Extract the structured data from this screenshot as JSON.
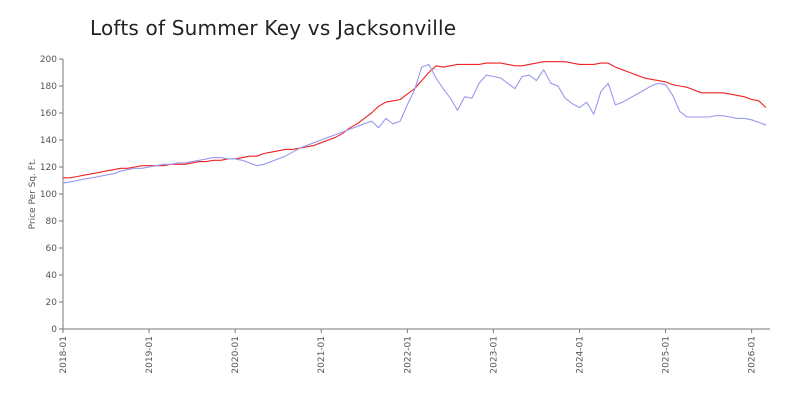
{
  "chart_data": {
    "type": "line",
    "title": "Lofts of Summer Key vs Jacksonville",
    "xlabel": "",
    "ylabel": "Price Per Sq. Ft.",
    "ylim": [
      0,
      200
    ],
    "xlim": [
      "2018-01",
      "2026-03"
    ],
    "grid": false,
    "legend": "none",
    "y_ticks": [
      0,
      20,
      40,
      60,
      80,
      100,
      120,
      140,
      160,
      180,
      200
    ],
    "x_ticks": [
      "2018-01",
      "2019-01",
      "2020-01",
      "2021-01",
      "2022-01",
      "2023-01",
      "2024-01",
      "2025-01",
      "2026-01"
    ],
    "series": [
      {
        "color": "#ee2222",
        "points": [
          [
            "2018-01",
            112
          ],
          [
            "2018-02",
            112
          ],
          [
            "2018-03",
            113
          ],
          [
            "2018-04",
            114
          ],
          [
            "2018-05",
            115
          ],
          [
            "2018-06",
            116
          ],
          [
            "2018-07",
            117
          ],
          [
            "2018-08",
            118
          ],
          [
            "2018-09",
            119
          ],
          [
            "2018-10",
            119
          ],
          [
            "2018-11",
            120
          ],
          [
            "2018-12",
            121
          ],
          [
            "2019-01",
            121
          ],
          [
            "2019-02",
            121
          ],
          [
            "2019-03",
            121
          ],
          [
            "2019-04",
            122
          ],
          [
            "2019-05",
            122
          ],
          [
            "2019-06",
            122
          ],
          [
            "2019-07",
            123
          ],
          [
            "2019-08",
            124
          ],
          [
            "2019-09",
            124
          ],
          [
            "2019-10",
            125
          ],
          [
            "2019-11",
            125
          ],
          [
            "2019-12",
            126
          ],
          [
            "2020-01",
            126
          ],
          [
            "2020-02",
            127
          ],
          [
            "2020-03",
            128
          ],
          [
            "2020-04",
            128
          ],
          [
            "2020-05",
            130
          ],
          [
            "2020-06",
            131
          ],
          [
            "2020-07",
            132
          ],
          [
            "2020-08",
            133
          ],
          [
            "2020-09",
            133
          ],
          [
            "2020-10",
            134
          ],
          [
            "2020-11",
            135
          ],
          [
            "2020-12",
            136
          ],
          [
            "2021-01",
            138
          ],
          [
            "2021-02",
            140
          ],
          [
            "2021-03",
            142
          ],
          [
            "2021-04",
            145
          ],
          [
            "2021-05",
            149
          ],
          [
            "2021-06",
            152
          ],
          [
            "2021-07",
            156
          ],
          [
            "2021-08",
            160
          ],
          [
            "2021-09",
            165
          ],
          [
            "2021-10",
            168
          ],
          [
            "2021-11",
            169
          ],
          [
            "2021-12",
            170
          ],
          [
            "2022-01",
            174
          ],
          [
            "2022-02",
            178
          ],
          [
            "2022-03",
            184
          ],
          [
            "2022-04",
            190
          ],
          [
            "2022-05",
            195
          ],
          [
            "2022-06",
            194
          ],
          [
            "2022-07",
            195
          ],
          [
            "2022-08",
            196
          ],
          [
            "2022-09",
            196
          ],
          [
            "2022-10",
            196
          ],
          [
            "2022-11",
            196
          ],
          [
            "2022-12",
            197
          ],
          [
            "2023-01",
            197
          ],
          [
            "2023-02",
            197
          ],
          [
            "2023-03",
            196
          ],
          [
            "2023-04",
            195
          ],
          [
            "2023-05",
            195
          ],
          [
            "2023-06",
            196
          ],
          [
            "2023-07",
            197
          ],
          [
            "2023-08",
            198
          ],
          [
            "2023-09",
            198
          ],
          [
            "2023-10",
            198
          ],
          [
            "2023-11",
            198
          ],
          [
            "2023-12",
            197
          ],
          [
            "2024-01",
            196
          ],
          [
            "2024-02",
            196
          ],
          [
            "2024-03",
            196
          ],
          [
            "2024-04",
            197
          ],
          [
            "2024-05",
            197
          ],
          [
            "2024-06",
            194
          ],
          [
            "2024-07",
            192
          ],
          [
            "2024-08",
            190
          ],
          [
            "2024-09",
            188
          ],
          [
            "2024-10",
            186
          ],
          [
            "2024-11",
            185
          ],
          [
            "2024-12",
            184
          ],
          [
            "2025-01",
            183
          ],
          [
            "2025-02",
            181
          ],
          [
            "2025-03",
            180
          ],
          [
            "2025-04",
            179
          ],
          [
            "2025-05",
            177
          ],
          [
            "2025-06",
            175
          ],
          [
            "2025-07",
            175
          ],
          [
            "2025-08",
            175
          ],
          [
            "2025-09",
            175
          ],
          [
            "2025-10",
            174
          ],
          [
            "2025-11",
            173
          ],
          [
            "2025-12",
            172
          ],
          [
            "2026-01",
            170
          ],
          [
            "2026-02",
            169
          ],
          [
            "2026-03",
            164
          ]
        ]
      },
      {
        "color": "#9999ee",
        "points": [
          [
            "2018-01",
            108
          ],
          [
            "2018-02",
            109
          ],
          [
            "2018-03",
            110
          ],
          [
            "2018-04",
            111
          ],
          [
            "2018-05",
            112
          ],
          [
            "2018-06",
            113
          ],
          [
            "2018-07",
            114
          ],
          [
            "2018-08",
            115
          ],
          [
            "2018-09",
            117
          ],
          [
            "2018-10",
            118
          ],
          [
            "2018-11",
            119
          ],
          [
            "2018-12",
            119
          ],
          [
            "2019-01",
            120
          ],
          [
            "2019-02",
            121
          ],
          [
            "2019-03",
            122
          ],
          [
            "2019-04",
            122
          ],
          [
            "2019-05",
            123
          ],
          [
            "2019-06",
            123
          ],
          [
            "2019-07",
            124
          ],
          [
            "2019-08",
            125
          ],
          [
            "2019-09",
            126
          ],
          [
            "2019-10",
            127
          ],
          [
            "2019-11",
            127
          ],
          [
            "2019-12",
            126
          ],
          [
            "2020-01",
            126
          ],
          [
            "2020-02",
            125
          ],
          [
            "2020-03",
            123
          ],
          [
            "2020-04",
            121
          ],
          [
            "2020-05",
            122
          ],
          [
            "2020-06",
            124
          ],
          [
            "2020-07",
            126
          ],
          [
            "2020-08",
            128
          ],
          [
            "2020-09",
            131
          ],
          [
            "2020-10",
            134
          ],
          [
            "2020-11",
            136
          ],
          [
            "2020-12",
            138
          ],
          [
            "2021-01",
            140
          ],
          [
            "2021-02",
            142
          ],
          [
            "2021-03",
            144
          ],
          [
            "2021-04",
            146
          ],
          [
            "2021-05",
            148
          ],
          [
            "2021-06",
            150
          ],
          [
            "2021-07",
            152
          ],
          [
            "2021-08",
            154
          ],
          [
            "2021-09",
            149
          ],
          [
            "2021-10",
            156
          ],
          [
            "2021-11",
            152
          ],
          [
            "2021-12",
            154
          ],
          [
            "2022-01",
            166
          ],
          [
            "2022-02",
            177
          ],
          [
            "2022-03",
            194
          ],
          [
            "2022-04",
            196
          ],
          [
            "2022-05",
            186
          ],
          [
            "2022-06",
            178
          ],
          [
            "2022-07",
            171
          ],
          [
            "2022-08",
            162
          ],
          [
            "2022-09",
            172
          ],
          [
            "2022-10",
            171
          ],
          [
            "2022-11",
            182
          ],
          [
            "2022-12",
            188
          ],
          [
            "2023-01",
            187
          ],
          [
            "2023-02",
            186
          ],
          [
            "2023-03",
            182
          ],
          [
            "2023-04",
            178
          ],
          [
            "2023-05",
            187
          ],
          [
            "2023-06",
            188
          ],
          [
            "2023-07",
            184
          ],
          [
            "2023-08",
            192
          ],
          [
            "2023-09",
            182
          ],
          [
            "2023-10",
            180
          ],
          [
            "2023-11",
            171
          ],
          [
            "2023-12",
            167
          ],
          [
            "2024-01",
            164
          ],
          [
            "2024-02",
            168
          ],
          [
            "2024-03",
            159
          ],
          [
            "2024-04",
            176
          ],
          [
            "2024-05",
            182
          ],
          [
            "2024-06",
            166
          ],
          [
            "2024-07",
            168
          ],
          [
            "2024-08",
            171
          ],
          [
            "2024-09",
            174
          ],
          [
            "2024-10",
            177
          ],
          [
            "2024-11",
            180
          ],
          [
            "2024-12",
            182
          ],
          [
            "2025-01",
            181
          ],
          [
            "2025-02",
            173
          ],
          [
            "2025-03",
            161
          ],
          [
            "2025-04",
            157
          ],
          [
            "2025-05",
            157
          ],
          [
            "2025-06",
            157
          ],
          [
            "2025-07",
            157
          ],
          [
            "2025-08",
            158
          ],
          [
            "2025-09",
            158
          ],
          [
            "2025-10",
            157
          ],
          [
            "2025-11",
            156
          ],
          [
            "2025-12",
            156
          ],
          [
            "2026-01",
            155
          ],
          [
            "2026-02",
            153
          ],
          [
            "2026-03",
            151
          ]
        ]
      }
    ]
  }
}
